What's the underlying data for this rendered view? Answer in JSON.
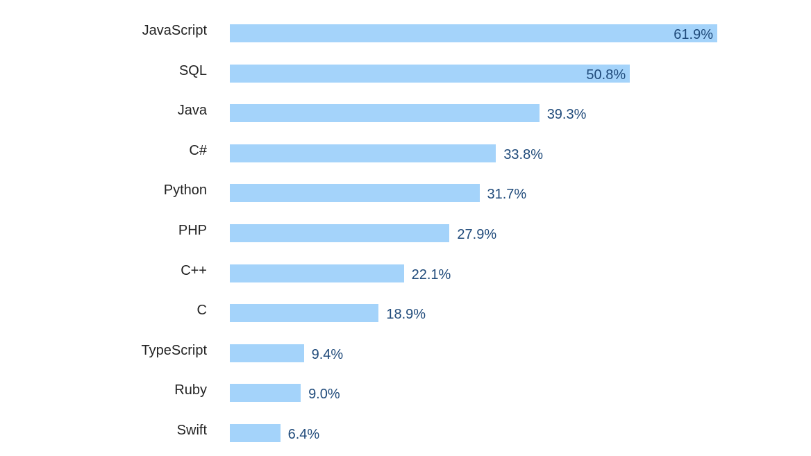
{
  "chart_data": {
    "type": "bar",
    "orientation": "horizontal",
    "title": "",
    "xlabel": "",
    "ylabel": "",
    "categories": [
      "JavaScript",
      "SQL",
      "Java",
      "C#",
      "Python",
      "PHP",
      "C++",
      "C",
      "TypeScript",
      "Ruby",
      "Swift"
    ],
    "values": [
      61.9,
      50.8,
      39.3,
      33.8,
      31.7,
      27.9,
      22.1,
      18.9,
      9.4,
      9.0,
      6.4
    ],
    "value_labels": [
      "61.9%",
      "50.8%",
      "39.3%",
      "33.8%",
      "31.7%",
      "27.9%",
      "22.1%",
      "18.9%",
      "9.4%",
      "9.0%",
      "6.4%"
    ],
    "xlim": [
      0,
      61.9
    ],
    "grid": false,
    "legend": null,
    "colors": {
      "bar": "#a4d3fa",
      "value_text": "#1f4a7a",
      "label_text": "#222222"
    }
  }
}
